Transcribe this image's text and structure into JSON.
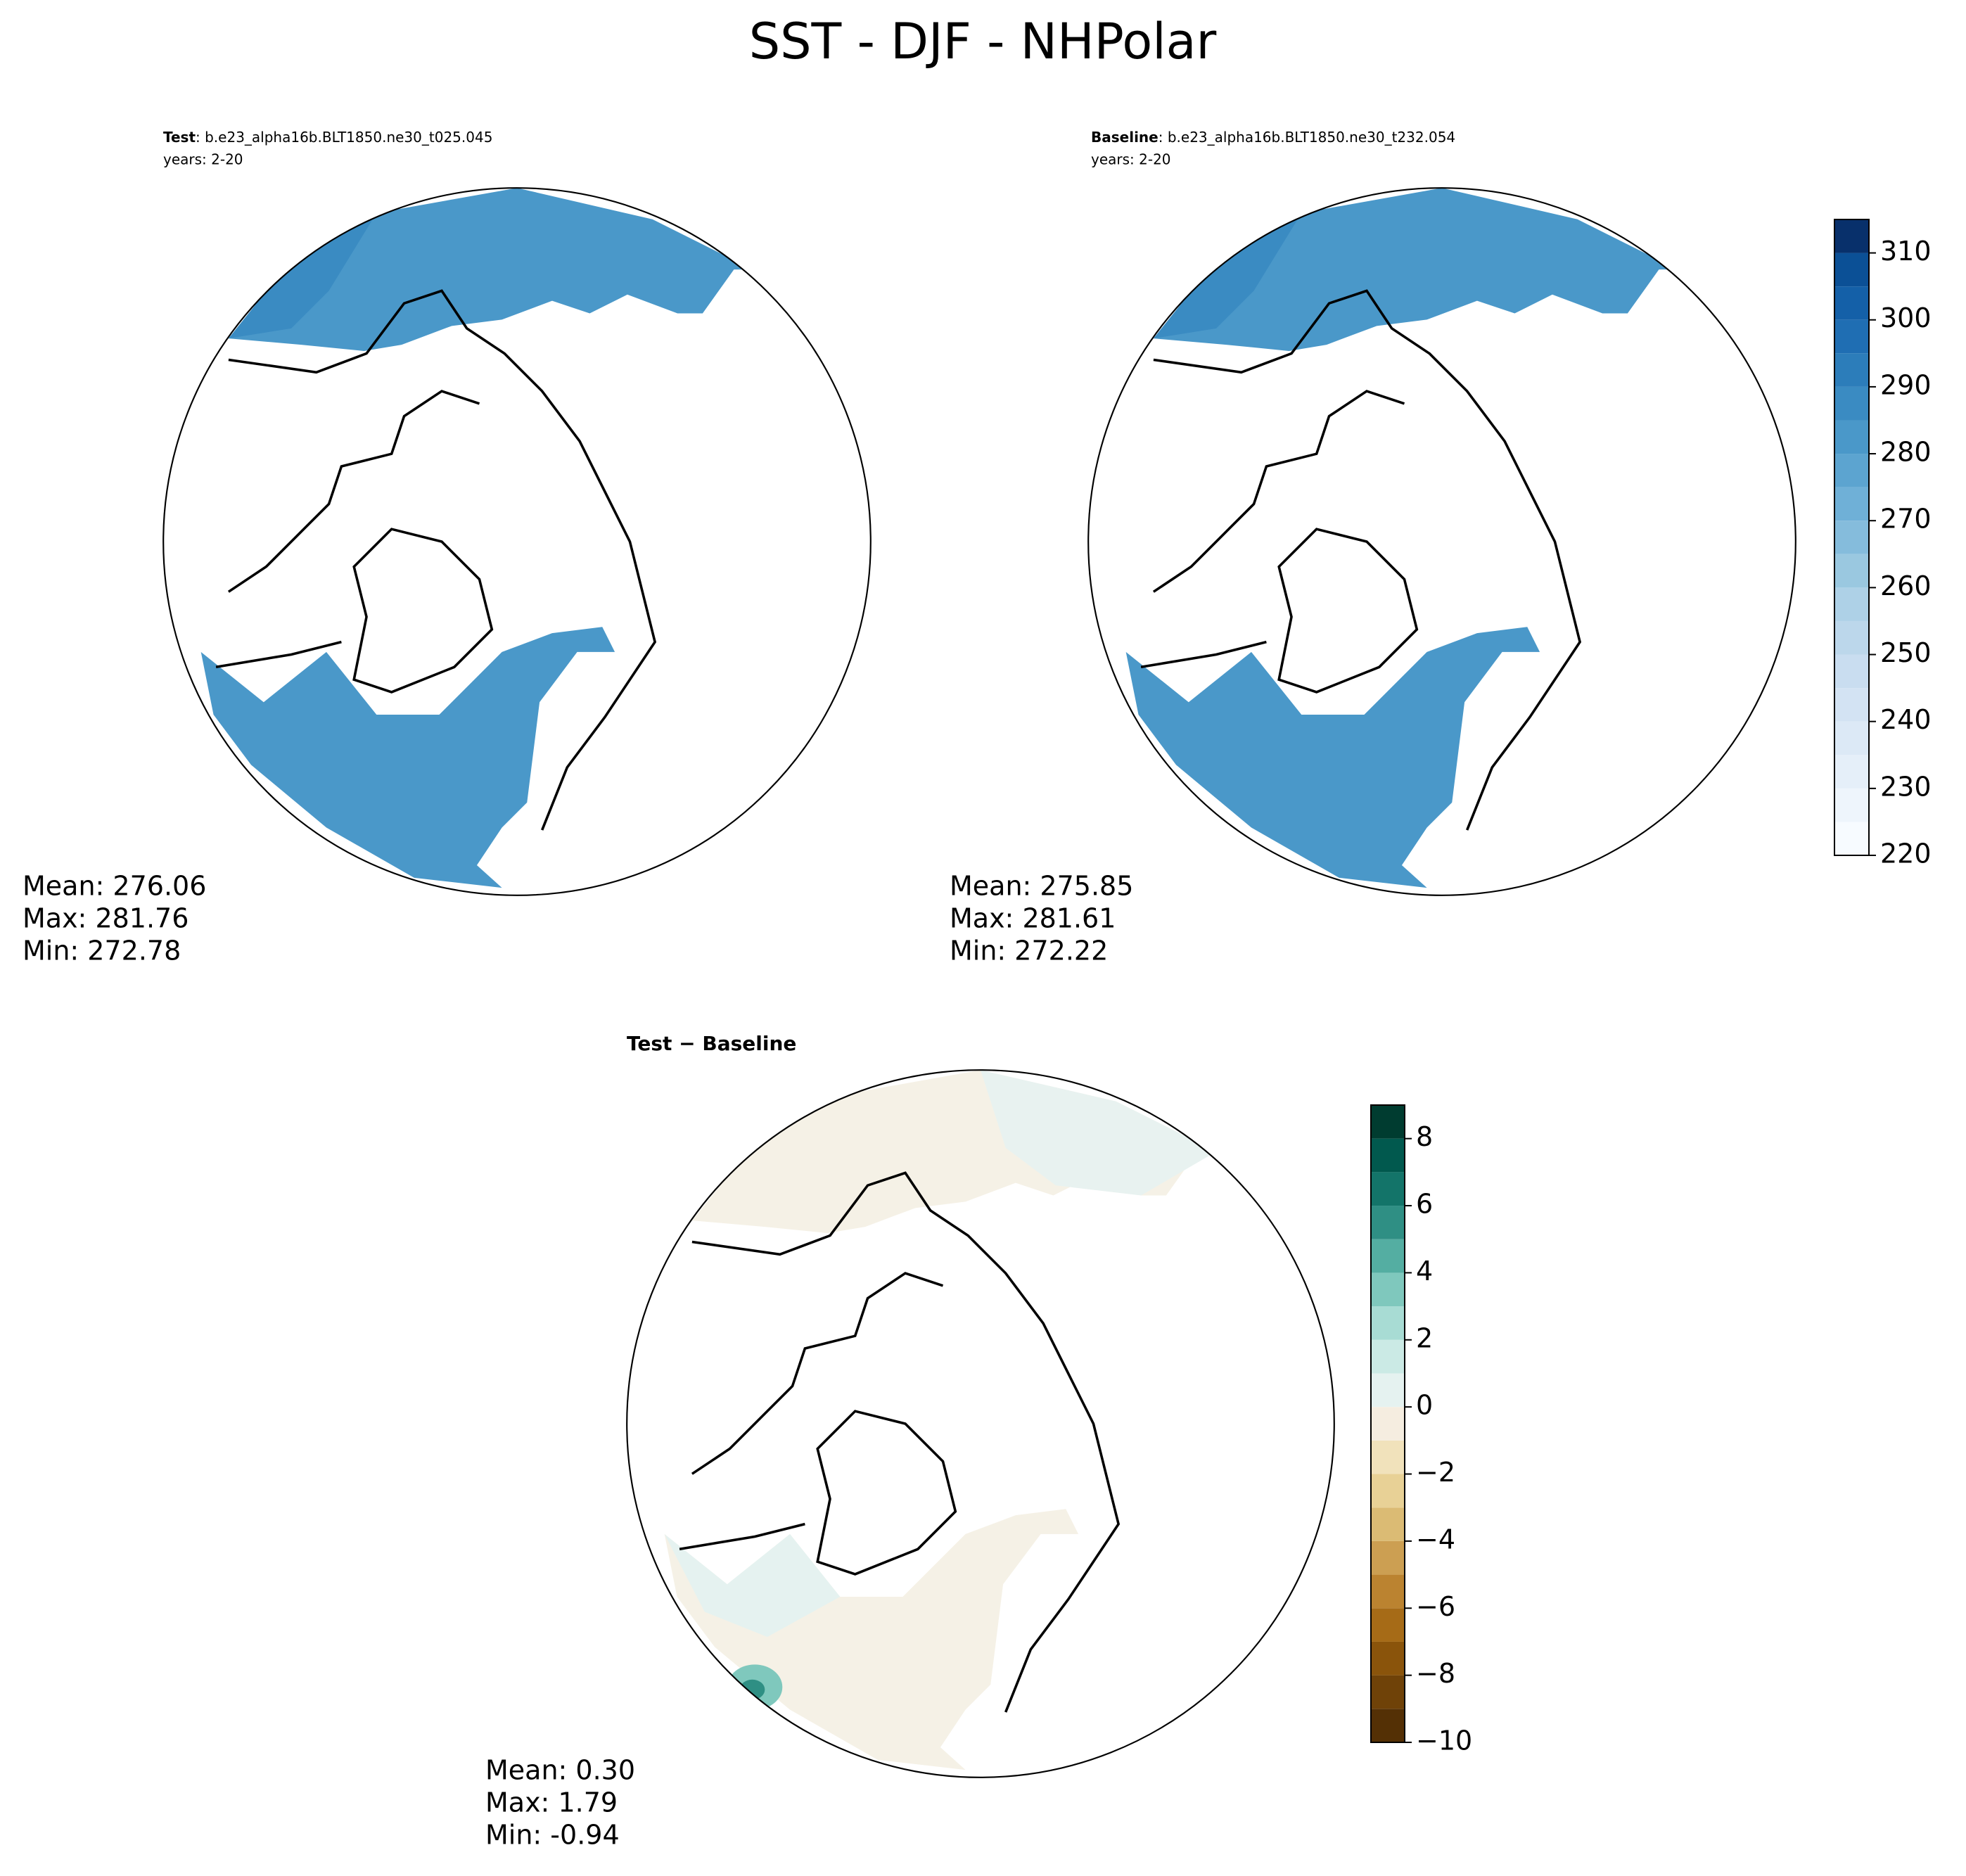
{
  "title": "SST - DJF - NHPolar",
  "chart_data": [
    {
      "type": "contour-map",
      "label": "Test",
      "case": ": b.e23_alpha16b.BLT1850.ne30_t025.045",
      "years": "years: 2-20",
      "stats": [
        "Mean: 276.06",
        "Max: 281.76",
        "Min: 272.78"
      ]
    },
    {
      "type": "contour-map",
      "label": "Baseline",
      "case": ": b.e23_alpha16b.BLT1850.ne30_t232.054",
      "years": "years: 2-20",
      "stats": [
        "Mean: 275.85",
        "Max: 281.61",
        "Min: 272.22"
      ],
      "colorbar": {
        "ylim": [
          220,
          315
        ],
        "levels": [
          220,
          225,
          230,
          235,
          240,
          245,
          250,
          255,
          260,
          265,
          270,
          275,
          280,
          285,
          290,
          295,
          300,
          305,
          310,
          315
        ],
        "colors": [
          "#f7fbff",
          "#eef5fc",
          "#e5eff9",
          "#dce9f6",
          "#d3e3f3",
          "#c9ddf0",
          "#bcd7eb",
          "#aed1e7",
          "#9ac8e0",
          "#85bcdc",
          "#6fb0d7",
          "#5ca4d0",
          "#4a98c9",
          "#3a8bc2",
          "#2c7dba",
          "#1f6eb3",
          "#1460a8",
          "#0b5096",
          "#08306b"
        ],
        "yticks": [
          220,
          230,
          240,
          250,
          260,
          270,
          280,
          290,
          300,
          310
        ]
      }
    },
    {
      "type": "contour-map",
      "title": "Test − Baseline",
      "stats": [
        "Mean:  0.30",
        "Max:  1.79",
        "Min: -0.94"
      ],
      "colorbar": {
        "ylim": [
          -10,
          9
        ],
        "levels": [
          -10,
          -9,
          -8,
          -7,
          -6,
          -5,
          -4,
          -3,
          -2,
          -1,
          0,
          1,
          2,
          3,
          4,
          5,
          6,
          7,
          8,
          9
        ],
        "colors": [
          "#543005",
          "#6f4208",
          "#8a540b",
          "#a66b17",
          "#bb8330",
          "#cc9f52",
          "#dbbb74",
          "#e8d196",
          "#f1e2bb",
          "#f5ede0",
          "#e5f2f0",
          "#cbeae5",
          "#a8dcd4",
          "#7fc8bd",
          "#54aea2",
          "#2f8f84",
          "#137469",
          "#01594e",
          "#003c30"
        ],
        "yticks": [
          {
            "value": -10,
            "label": "−10"
          },
          {
            "value": -8,
            "label": "−8"
          },
          {
            "value": -6,
            "label": "−6"
          },
          {
            "value": -4,
            "label": "−4"
          },
          {
            "value": -2,
            "label": "−2"
          },
          0,
          2,
          4,
          6,
          8
        ]
      }
    }
  ]
}
